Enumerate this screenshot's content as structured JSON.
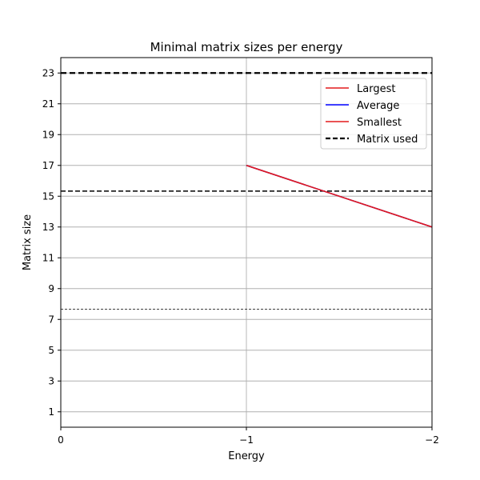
{
  "chart_data": {
    "type": "line",
    "title": "Minimal matrix sizes per energy",
    "xlabel": "Energy",
    "ylabel": "Matrix size",
    "x_axis": {
      "ticks": [
        0,
        -1,
        -2
      ],
      "tick_labels": [
        "0",
        "−1",
        "−2"
      ],
      "range": [
        0,
        -2
      ]
    },
    "y_axis": {
      "ticks": [
        1,
        3,
        5,
        7,
        9,
        11,
        13,
        15,
        17,
        19,
        21,
        23
      ],
      "tick_labels": [
        "1",
        "3",
        "5",
        "7",
        "9",
        "11",
        "13",
        "15",
        "17",
        "19",
        "21",
        "23"
      ],
      "range": [
        0,
        24
      ]
    },
    "grid": true,
    "legend_position": "top-right",
    "series": [
      {
        "name": "Largest",
        "color": "#e41a1c",
        "style": "solid",
        "x": [
          -1,
          -2
        ],
        "y": [
          17,
          13
        ]
      },
      {
        "name": "Average",
        "color": "#0000ff",
        "style": "solid",
        "x": [
          -1,
          -2
        ],
        "y": [
          17,
          13
        ]
      },
      {
        "name": "Smallest",
        "color": "#e41a1c",
        "style": "solid",
        "x": [
          -1,
          -2
        ],
        "y": [
          17,
          13
        ]
      }
    ],
    "reference_lines": [
      {
        "name": "Matrix used",
        "y": 23,
        "color": "#000000",
        "style": "dashed",
        "weight": "thick"
      },
      {
        "y": 15.33,
        "color": "#000000",
        "style": "dashed",
        "weight": "medium"
      },
      {
        "y": 7.67,
        "color": "#000000",
        "style": "dashed",
        "weight": "thin"
      }
    ]
  }
}
